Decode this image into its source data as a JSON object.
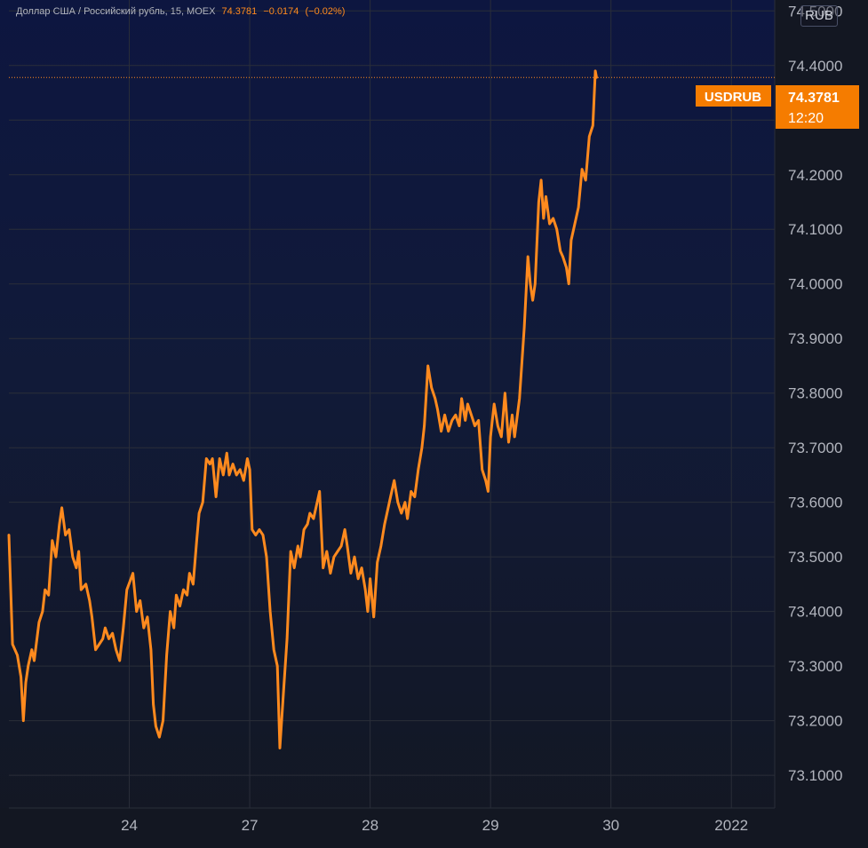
{
  "header": {
    "symbol_label": "Доллар США / Российский рубль, 15, MOEX",
    "last": "74.3781",
    "change": "−0.0174",
    "change_pct": "(−0.02%)"
  },
  "currency": "RUB",
  "last_tag": {
    "symbol": "USDRUB",
    "price": "74.3781",
    "countdown": "12:20"
  },
  "colors": {
    "line": "#ff8a1e",
    "tag_bg": "#f57c00",
    "axis_text": "#b2b5be",
    "grid": "#2a2e39"
  },
  "chart_data": {
    "type": "line",
    "title": "Доллар США / Российский рубль, 15, MOEX",
    "series": [
      {
        "name": "USDRUB",
        "points": [
          [
            23.0,
            73.54
          ],
          [
            23.03,
            73.34
          ],
          [
            23.07,
            73.32
          ],
          [
            23.1,
            73.28
          ],
          [
            23.12,
            73.2
          ],
          [
            23.14,
            73.27
          ],
          [
            23.16,
            73.3
          ],
          [
            23.19,
            73.33
          ],
          [
            23.21,
            73.31
          ],
          [
            23.25,
            73.38
          ],
          [
            23.28,
            73.4
          ],
          [
            23.3,
            73.44
          ],
          [
            23.33,
            73.43
          ],
          [
            23.36,
            73.53
          ],
          [
            23.39,
            73.5
          ],
          [
            23.42,
            73.56
          ],
          [
            23.44,
            73.59
          ],
          [
            23.47,
            73.54
          ],
          [
            23.5,
            73.55
          ],
          [
            23.53,
            73.5
          ],
          [
            23.56,
            73.48
          ],
          [
            23.58,
            73.51
          ],
          [
            23.6,
            73.44
          ],
          [
            23.64,
            73.45
          ],
          [
            23.67,
            73.42
          ],
          [
            23.69,
            73.39
          ],
          [
            23.72,
            73.33
          ],
          [
            23.75,
            73.34
          ],
          [
            23.78,
            73.35
          ],
          [
            23.8,
            73.37
          ],
          [
            23.83,
            73.35
          ],
          [
            23.86,
            73.36
          ],
          [
            23.89,
            73.33
          ],
          [
            23.92,
            73.31
          ],
          [
            23.95,
            73.37
          ],
          [
            23.98,
            73.44
          ],
          [
            24.03,
            73.47
          ],
          [
            24.06,
            73.4
          ],
          [
            24.09,
            73.42
          ],
          [
            24.12,
            73.37
          ],
          [
            24.15,
            73.39
          ],
          [
            24.18,
            73.33
          ],
          [
            24.2,
            73.23
          ],
          [
            24.22,
            73.19
          ],
          [
            24.25,
            73.17
          ],
          [
            24.28,
            73.2
          ],
          [
            24.31,
            73.32
          ],
          [
            24.34,
            73.4
          ],
          [
            24.37,
            73.37
          ],
          [
            24.39,
            73.43
          ],
          [
            24.42,
            73.41
          ],
          [
            24.45,
            73.44
          ],
          [
            24.48,
            73.43
          ],
          [
            24.5,
            73.47
          ],
          [
            24.53,
            73.45
          ],
          [
            24.56,
            73.53
          ],
          [
            24.58,
            73.58
          ],
          [
            24.61,
            73.6
          ],
          [
            24.64,
            73.68
          ],
          [
            24.67,
            73.67
          ],
          [
            24.69,
            73.68
          ],
          [
            24.72,
            73.61
          ],
          [
            24.75,
            73.68
          ],
          [
            24.78,
            73.65
          ],
          [
            24.81,
            73.69
          ],
          [
            24.83,
            73.65
          ],
          [
            24.86,
            73.67
          ],
          [
            24.89,
            73.65
          ],
          [
            24.92,
            73.66
          ],
          [
            24.95,
            73.64
          ],
          [
            24.98,
            73.68
          ],
          [
            25.0,
            73.66
          ],
          [
            25.02,
            73.55
          ],
          [
            25.05,
            73.54
          ],
          [
            25.08,
            73.55
          ],
          [
            25.11,
            73.54
          ],
          [
            25.14,
            73.5
          ],
          [
            25.17,
            73.4
          ],
          [
            25.2,
            73.33
          ],
          [
            25.23,
            73.3
          ],
          [
            25.25,
            73.15
          ],
          [
            25.28,
            73.25
          ],
          [
            25.31,
            73.35
          ],
          [
            25.34,
            73.51
          ],
          [
            25.37,
            73.48
          ],
          [
            25.4,
            73.52
          ],
          [
            25.42,
            73.5
          ],
          [
            25.45,
            73.55
          ],
          [
            25.48,
            73.56
          ],
          [
            25.5,
            73.58
          ],
          [
            25.53,
            73.57
          ],
          [
            25.56,
            73.6
          ],
          [
            25.58,
            73.62
          ],
          [
            25.61,
            73.48
          ],
          [
            25.64,
            73.51
          ],
          [
            25.67,
            73.47
          ],
          [
            25.7,
            73.5
          ],
          [
            25.73,
            73.51
          ],
          [
            25.76,
            73.52
          ],
          [
            25.79,
            73.55
          ],
          [
            25.81,
            73.52
          ],
          [
            25.84,
            73.47
          ],
          [
            25.87,
            73.5
          ],
          [
            25.9,
            73.46
          ],
          [
            25.93,
            73.48
          ],
          [
            25.96,
            73.44
          ],
          [
            25.98,
            73.4
          ],
          [
            26.0,
            73.46
          ],
          [
            26.03,
            73.39
          ],
          [
            26.06,
            73.49
          ],
          [
            26.09,
            73.52
          ],
          [
            26.12,
            73.56
          ],
          [
            26.14,
            73.58
          ],
          [
            26.17,
            73.61
          ],
          [
            26.2,
            73.64
          ],
          [
            26.23,
            73.6
          ],
          [
            26.26,
            73.58
          ],
          [
            26.29,
            73.6
          ],
          [
            26.31,
            73.57
          ],
          [
            26.34,
            73.62
          ],
          [
            26.37,
            73.61
          ],
          [
            26.4,
            73.66
          ],
          [
            26.43,
            73.7
          ],
          [
            26.45,
            73.74
          ],
          [
            26.48,
            73.85
          ],
          [
            26.51,
            73.81
          ],
          [
            26.54,
            73.79
          ],
          [
            26.56,
            73.77
          ],
          [
            26.59,
            73.73
          ],
          [
            26.62,
            73.76
          ],
          [
            26.65,
            73.73
          ],
          [
            26.68,
            73.75
          ],
          [
            26.71,
            73.76
          ],
          [
            26.74,
            73.74
          ],
          [
            26.76,
            73.79
          ],
          [
            26.79,
            73.75
          ],
          [
            26.81,
            73.78
          ],
          [
            26.84,
            73.76
          ],
          [
            26.87,
            73.74
          ],
          [
            26.9,
            73.75
          ],
          [
            26.93,
            73.66
          ],
          [
            26.96,
            73.64
          ],
          [
            26.98,
            73.62
          ],
          [
            27.0,
            73.72
          ],
          [
            27.03,
            73.78
          ],
          [
            27.06,
            73.74
          ],
          [
            27.09,
            73.72
          ],
          [
            27.12,
            73.8
          ],
          [
            27.15,
            73.71
          ],
          [
            27.18,
            73.76
          ],
          [
            27.2,
            73.72
          ],
          [
            27.24,
            73.79
          ],
          [
            27.28,
            73.92
          ],
          [
            27.31,
            74.05
          ],
          [
            27.33,
            74.0
          ],
          [
            27.35,
            73.97
          ],
          [
            27.37,
            74.0
          ],
          [
            27.4,
            74.15
          ],
          [
            27.42,
            74.19
          ],
          [
            27.44,
            74.12
          ],
          [
            27.46,
            74.16
          ],
          [
            27.49,
            74.11
          ],
          [
            27.52,
            74.12
          ],
          [
            27.55,
            74.1
          ],
          [
            27.58,
            74.06
          ],
          [
            27.6,
            74.05
          ],
          [
            27.63,
            74.03
          ],
          [
            27.65,
            74.0
          ],
          [
            27.67,
            74.08
          ],
          [
            27.7,
            74.11
          ],
          [
            27.73,
            74.14
          ],
          [
            27.76,
            74.21
          ],
          [
            27.79,
            74.19
          ],
          [
            27.82,
            74.27
          ],
          [
            27.85,
            74.29
          ],
          [
            27.87,
            74.39
          ],
          [
            27.88,
            74.3781
          ]
        ]
      }
    ],
    "x_ticks": [
      {
        "x": 24,
        "label": "24"
      },
      {
        "x": 25,
        "label": "27"
      },
      {
        "x": 26,
        "label": "28"
      },
      {
        "x": 27,
        "label": "29"
      },
      {
        "x": 28,
        "label": "30"
      },
      {
        "x": 29,
        "label": "2022"
      }
    ],
    "y_ticks": [
      "73.1000",
      "73.2000",
      "73.3000",
      "73.4000",
      "73.5000",
      "73.6000",
      "73.7000",
      "73.8000",
      "73.9000",
      "74.0000",
      "74.1000",
      "74.2000",
      "74.3000",
      "74.4000",
      "74.5000"
    ],
    "x_range": [
      23.0,
      29.36
    ],
    "y_range": [
      73.04,
      74.52
    ],
    "last_value": 74.3781,
    "grid": true
  }
}
